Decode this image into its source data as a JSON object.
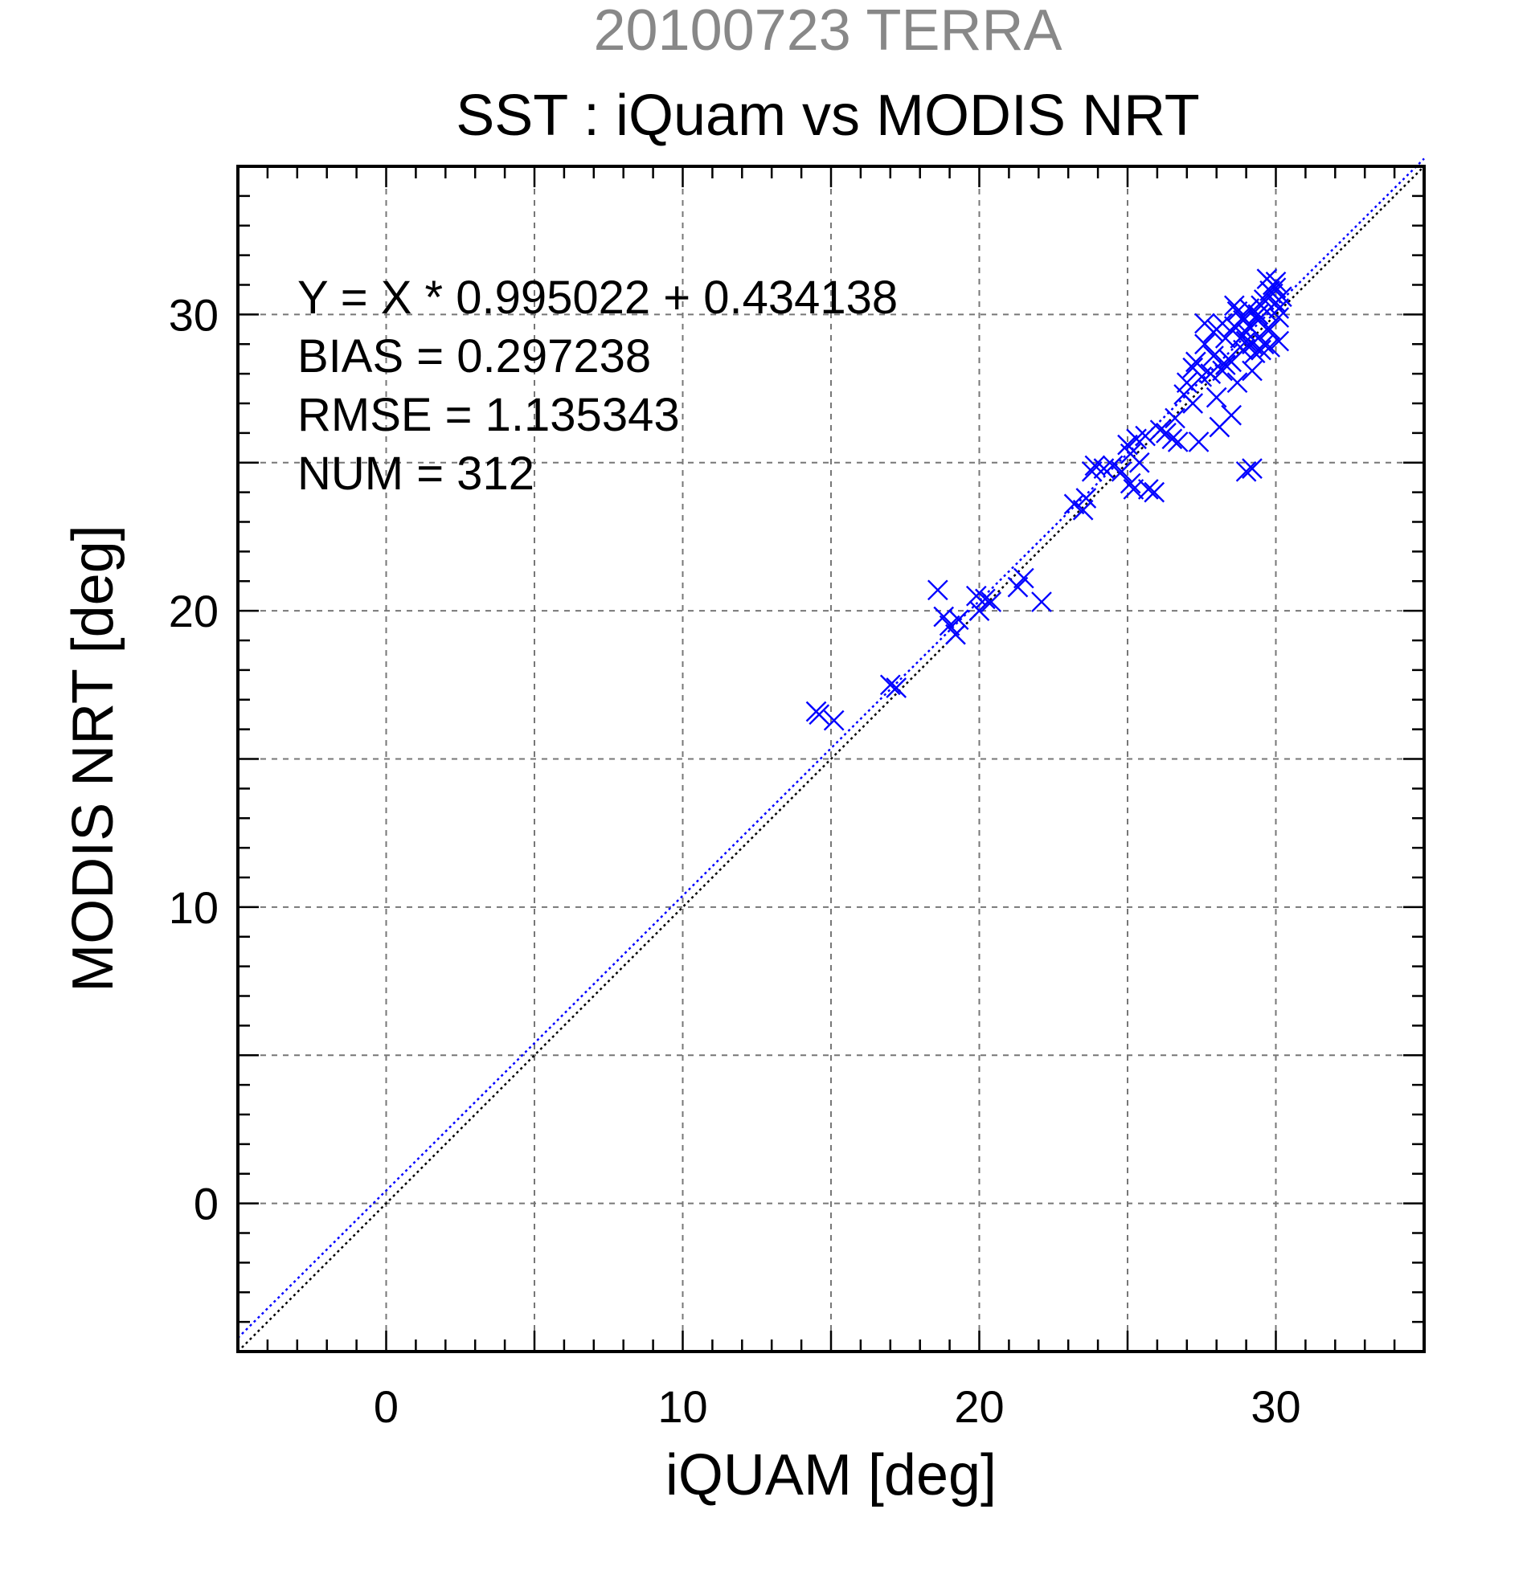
{
  "chart_data": {
    "type": "scatter",
    "title_top": "20100723 TERRA",
    "title": "SST : iQuam vs MODIS NRT",
    "xlabel": "iQUAM [deg]",
    "ylabel": "MODIS NRT [deg]",
    "xlim": [
      -5,
      35
    ],
    "ylim": [
      -5,
      35
    ],
    "major_ticks": [
      0,
      10,
      20,
      30
    ],
    "minor_step": 1,
    "grid": true,
    "annotations": [
      "Y = X * 0.995022 + 0.434138",
      "BIAS = 0.297238",
      "RMSE = 1.135343",
      "NUM = 312"
    ],
    "fit_line": {
      "slope": 0.995022,
      "intercept": 0.434138,
      "color": "#0000ff",
      "style": "dotted"
    },
    "identity_line": {
      "slope": 1,
      "intercept": 0,
      "color": "#000000",
      "style": "dotted"
    },
    "marker": {
      "shape": "x",
      "color": "#0000ff"
    },
    "x": [
      14.5,
      14.6,
      15.1,
      17.0,
      17.2,
      18.6,
      18.8,
      19.0,
      19.2,
      19.3,
      19.9,
      20.0,
      20.2,
      20.4,
      21.3,
      21.5,
      22.1,
      23.2,
      23.5,
      23.6,
      23.8,
      23.9,
      24.2,
      24.5,
      24.8,
      25.0,
      25.1,
      25.1,
      25.2,
      25.3,
      25.4,
      25.6,
      25.7,
      25.9,
      26.1,
      26.3,
      26.5,
      26.6,
      26.7,
      26.9,
      27.0,
      27.2,
      27.2,
      27.3,
      27.4,
      27.5,
      27.6,
      27.8,
      27.9,
      28.0,
      28.0,
      28.2,
      28.2,
      28.3,
      28.3,
      28.5,
      28.5,
      28.6,
      28.7,
      28.7,
      28.9,
      28.9,
      29.0,
      29.0,
      29.1,
      29.2,
      29.2,
      29.3,
      29.4,
      29.4,
      29.5,
      29.6,
      29.6,
      29.7,
      29.8,
      29.8,
      29.9,
      30.0,
      30.0,
      30.1,
      30.1,
      29.9,
      29.7,
      28.8,
      28.4,
      27.9,
      29.0,
      29.2,
      29.1,
      29.7,
      30.0,
      30.2,
      29.5,
      28.6,
      27.6,
      28.1,
      28.9,
      29.4,
      29.8,
      30.1
    ],
    "y": [
      16.6,
      16.5,
      16.3,
      17.5,
      17.4,
      20.7,
      19.8,
      19.5,
      19.2,
      19.7,
      20.5,
      20.0,
      20.4,
      20.3,
      20.8,
      21.1,
      20.3,
      23.6,
      23.4,
      23.8,
      24.7,
      24.9,
      24.8,
      24.9,
      24.7,
      25.6,
      25.3,
      24.3,
      24.1,
      25.8,
      25.0,
      25.9,
      24.1,
      24.0,
      26.1,
      26.0,
      25.8,
      26.5,
      25.7,
      27.3,
      27.7,
      27.0,
      28.2,
      28.4,
      25.7,
      27.9,
      29.0,
      28.0,
      28.6,
      29.5,
      27.2,
      28.1,
      29.7,
      28.3,
      29.2,
      26.6,
      28.4,
      29.6,
      27.7,
      30.1,
      29.8,
      28.8,
      24.7,
      29.4,
      30.2,
      29.0,
      24.8,
      28.7,
      30.0,
      29.8,
      30.3,
      29.0,
      30.5,
      29.5,
      30.8,
      28.9,
      31.0,
      31.1,
      30.4,
      29.1,
      29.9,
      30.7,
      31.2,
      29.2,
      28.5,
      29.4,
      29.1,
      28.1,
      29.6,
      30.1,
      30.9,
      30.6,
      28.8,
      30.3,
      29.7,
      26.2,
      29.9,
      30.0,
      29.5,
      30.2
    ]
  }
}
